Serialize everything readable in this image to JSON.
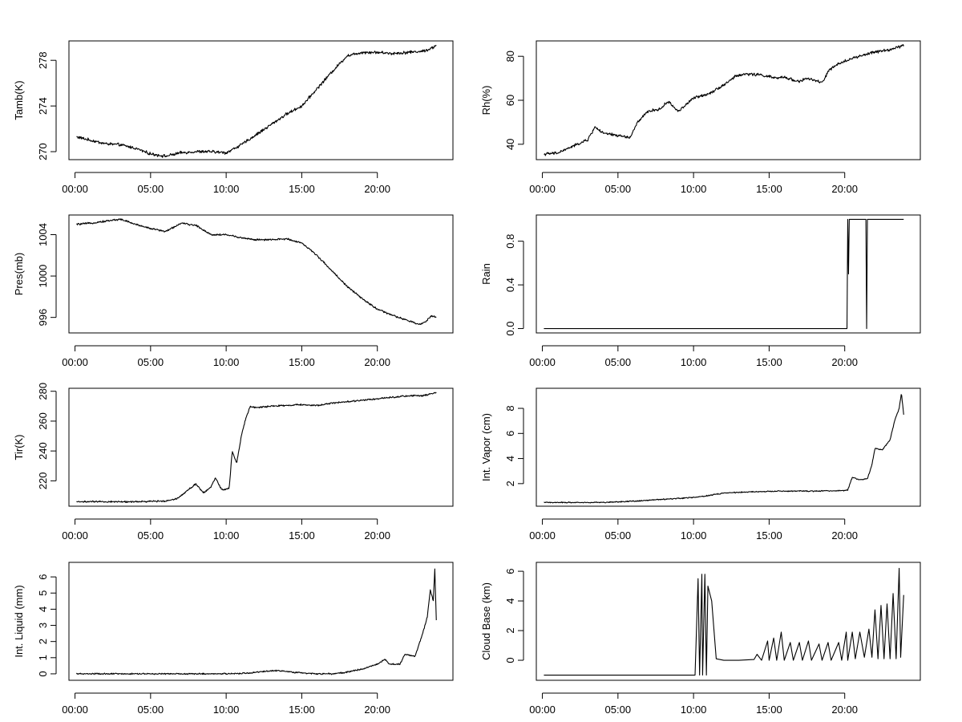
{
  "figure": {
    "layout": "4x2 grid of time-series panels",
    "colors": {
      "line": "#000000",
      "background": "#ffffff"
    }
  },
  "chart_data": [
    {
      "type": "line",
      "ylabel": "Tamb(K)",
      "x_ticks": [
        "00:00",
        "05:00",
        "10:00",
        "15:00",
        "20:00"
      ],
      "xlim": [
        -0.4,
        25.0
      ],
      "yticks": [
        270,
        274,
        278
      ],
      "ylim": [
        269.3,
        279.7
      ],
      "noise": 0.12,
      "points": [
        [
          0.1,
          271.3
        ],
        [
          1,
          271
        ],
        [
          2,
          270.7
        ],
        [
          3,
          270.6
        ],
        [
          4,
          270.3
        ],
        [
          5,
          269.8
        ],
        [
          6,
          269.6
        ],
        [
          7,
          269.9
        ],
        [
          8,
          270.0
        ],
        [
          9,
          270.0
        ],
        [
          10,
          269.9
        ],
        [
          11,
          270.6
        ],
        [
          12,
          271.5
        ],
        [
          13,
          272.4
        ],
        [
          14,
          273.3
        ],
        [
          15,
          274.0
        ],
        [
          16,
          275.5
        ],
        [
          17,
          277.0
        ],
        [
          18,
          278.4
        ],
        [
          19,
          278.7
        ],
        [
          20,
          278.7
        ],
        [
          21,
          278.6
        ],
        [
          22,
          278.7
        ],
        [
          23,
          278.8
        ],
        [
          23.5,
          279.0
        ],
        [
          23.9,
          279.3
        ]
      ]
    },
    {
      "type": "line",
      "ylabel": "Rh(%)",
      "x_ticks": [
        "00:00",
        "05:00",
        "10:00",
        "15:00",
        "20:00"
      ],
      "xlim": [
        -0.4,
        25.0
      ],
      "yticks": [
        40,
        60,
        80
      ],
      "ylim": [
        33,
        87
      ],
      "noise": 0.6,
      "points": [
        [
          0.1,
          35.5
        ],
        [
          1,
          36
        ],
        [
          2,
          39
        ],
        [
          3,
          42
        ],
        [
          3.5,
          48
        ],
        [
          4,
          45
        ],
        [
          5,
          44
        ],
        [
          5.8,
          43
        ],
        [
          6.3,
          50
        ],
        [
          7,
          55
        ],
        [
          7.8,
          56
        ],
        [
          8.3,
          59.5
        ],
        [
          9,
          55
        ],
        [
          10,
          61
        ],
        [
          11,
          63
        ],
        [
          12,
          67
        ],
        [
          12.8,
          71
        ],
        [
          13.5,
          72
        ],
        [
          14.5,
          71.5
        ],
        [
          15.5,
          70
        ],
        [
          16,
          70.5
        ],
        [
          17,
          68.5
        ],
        [
          17.5,
          70
        ],
        [
          18.5,
          68
        ],
        [
          19,
          74
        ],
        [
          20,
          78
        ],
        [
          21,
          80
        ],
        [
          22,
          82
        ],
        [
          23,
          83
        ],
        [
          23.9,
          85
        ]
      ]
    },
    {
      "type": "line",
      "ylabel": "Pres(mb)",
      "x_ticks": [
        "00:00",
        "05:00",
        "10:00",
        "15:00",
        "20:00"
      ],
      "xlim": [
        -0.4,
        25.0
      ],
      "yticks": [
        996,
        1000,
        1004
      ],
      "ylim": [
        994.5,
        1005.9
      ],
      "noise": 0.08,
      "points": [
        [
          0.1,
          1005.0
        ],
        [
          1,
          1005.1
        ],
        [
          2,
          1005.3
        ],
        [
          3,
          1005.5
        ],
        [
          4,
          1005.0
        ],
        [
          5,
          1004.6
        ],
        [
          6,
          1004.3
        ],
        [
          6.5,
          1004.7
        ],
        [
          7,
          1005.1
        ],
        [
          8,
          1004.9
        ],
        [
          9,
          1004.0
        ],
        [
          10,
          1004.0
        ],
        [
          11,
          1003.7
        ],
        [
          12,
          1003.5
        ],
        [
          13,
          1003.5
        ],
        [
          14,
          1003.6
        ],
        [
          15,
          1003.2
        ],
        [
          16,
          1002.0
        ],
        [
          17,
          1000.5
        ],
        [
          18,
          999.0
        ],
        [
          19,
          997.8
        ],
        [
          20,
          996.8
        ],
        [
          21,
          996.2
        ],
        [
          22,
          995.7
        ],
        [
          22.8,
          995.3
        ],
        [
          23.2,
          995.6
        ],
        [
          23.6,
          996.2
        ],
        [
          23.9,
          996.0
        ]
      ]
    },
    {
      "type": "line",
      "ylabel": "Rain",
      "x_ticks": [
        "00:00",
        "05:00",
        "10:00",
        "15:00",
        "20:00"
      ],
      "xlim": [
        -0.4,
        25.0
      ],
      "yticks": [
        0.0,
        0.4,
        0.8
      ],
      "ylim": [
        -0.04,
        1.04
      ],
      "noise": 0,
      "points": [
        [
          0.1,
          0
        ],
        [
          20.15,
          0
        ],
        [
          20.2,
          1
        ],
        [
          20.25,
          0.5
        ],
        [
          20.3,
          1
        ],
        [
          21.4,
          1
        ],
        [
          21.45,
          0
        ],
        [
          21.5,
          1
        ],
        [
          23.9,
          1
        ]
      ]
    },
    {
      "type": "line",
      "ylabel": "Tir(K)",
      "x_ticks": [
        "00:00",
        "05:00",
        "10:00",
        "15:00",
        "20:00"
      ],
      "xlim": [
        -0.4,
        25.0
      ],
      "yticks": [
        220,
        240,
        260,
        280
      ],
      "ylim": [
        203,
        282
      ],
      "noise": 0.5,
      "points": [
        [
          0.1,
          206
        ],
        [
          2,
          206
        ],
        [
          4,
          206
        ],
        [
          6,
          206.5
        ],
        [
          6.7,
          208
        ],
        [
          7,
          210
        ],
        [
          7.5,
          214
        ],
        [
          8,
          218
        ],
        [
          8.5,
          212
        ],
        [
          9,
          216
        ],
        [
          9.3,
          222
        ],
        [
          9.7,
          214
        ],
        [
          10.2,
          215
        ],
        [
          10.4,
          240
        ],
        [
          10.7,
          232
        ],
        [
          11,
          250
        ],
        [
          11.3,
          262
        ],
        [
          11.6,
          270
        ],
        [
          12,
          269
        ],
        [
          13,
          270
        ],
        [
          14,
          270.5
        ],
        [
          15,
          271
        ],
        [
          16,
          270.5
        ],
        [
          17,
          272
        ],
        [
          18,
          273
        ],
        [
          19,
          274
        ],
        [
          20,
          275
        ],
        [
          21,
          276
        ],
        [
          22,
          277
        ],
        [
          23,
          277
        ],
        [
          23.9,
          279
        ]
      ]
    },
    {
      "type": "line",
      "ylabel": "Int. Vapor (cm)",
      "x_ticks": [
        "00:00",
        "05:00",
        "10:00",
        "15:00",
        "20:00"
      ],
      "xlim": [
        -0.4,
        25.0
      ],
      "yticks": [
        2,
        4,
        6,
        8
      ],
      "ylim": [
        0.2,
        9.6
      ],
      "noise": 0.04,
      "points": [
        [
          0.1,
          0.5
        ],
        [
          2,
          0.5
        ],
        [
          4,
          0.5
        ],
        [
          6,
          0.6
        ],
        [
          8,
          0.75
        ],
        [
          10,
          0.9
        ],
        [
          11,
          1.05
        ],
        [
          12,
          1.25
        ],
        [
          13,
          1.3
        ],
        [
          14,
          1.35
        ],
        [
          16,
          1.4
        ],
        [
          18,
          1.4
        ],
        [
          20,
          1.45
        ],
        [
          20.2,
          1.5
        ],
        [
          20.5,
          2.5
        ],
        [
          21,
          2.3
        ],
        [
          21.5,
          2.4
        ],
        [
          21.8,
          3.5
        ],
        [
          22,
          4.8
        ],
        [
          22.5,
          4.7
        ],
        [
          23,
          5.5
        ],
        [
          23.3,
          7
        ],
        [
          23.6,
          8
        ],
        [
          23.75,
          9.2
        ],
        [
          23.9,
          7.5
        ]
      ]
    },
    {
      "type": "line",
      "ylabel": "Int. Liquid (mm)",
      "x_ticks": [
        "00:00",
        "05:00",
        "10:00",
        "15:00",
        "20:00"
      ],
      "xlim": [
        -0.4,
        25.0
      ],
      "yticks": [
        0,
        1,
        2,
        3,
        4,
        5,
        6
      ],
      "ylim": [
        -0.4,
        6.9
      ],
      "noise": 0.04,
      "points": [
        [
          0.1,
          0
        ],
        [
          5,
          0
        ],
        [
          10,
          0
        ],
        [
          11.5,
          0.05
        ],
        [
          12.5,
          0.15
        ],
        [
          13.5,
          0.2
        ],
        [
          14,
          0.15
        ],
        [
          15,
          0.05
        ],
        [
          16,
          0
        ],
        [
          17,
          0
        ],
        [
          18,
          0.1
        ],
        [
          19,
          0.3
        ],
        [
          20,
          0.6
        ],
        [
          20.5,
          0.9
        ],
        [
          20.8,
          0.6
        ],
        [
          21.5,
          0.6
        ],
        [
          21.8,
          1.2
        ],
        [
          22.5,
          1.1
        ],
        [
          23,
          2.5
        ],
        [
          23.3,
          3.5
        ],
        [
          23.5,
          5.2
        ],
        [
          23.7,
          4.5
        ],
        [
          23.8,
          6.5
        ],
        [
          23.9,
          3.3
        ]
      ]
    },
    {
      "type": "line",
      "ylabel": "Cloud Base (km)",
      "x_ticks": [
        "00:00",
        "05:00",
        "10:00",
        "15:00",
        "20:00"
      ],
      "xlim": [
        -0.4,
        25.0
      ],
      "yticks": [
        0,
        2,
        4,
        6
      ],
      "ylim": [
        -1.35,
        6.6
      ],
      "noise": 0,
      "points": [
        [
          0.1,
          -1
        ],
        [
          10.1,
          -1
        ],
        [
          10.3,
          5.5
        ],
        [
          10.4,
          -1
        ],
        [
          10.55,
          5.8
        ],
        [
          10.6,
          -1
        ],
        [
          10.75,
          5.8
        ],
        [
          10.85,
          -1
        ],
        [
          10.95,
          5
        ],
        [
          11.2,
          4
        ],
        [
          11.5,
          0.1
        ],
        [
          12,
          0
        ],
        [
          13,
          0
        ],
        [
          14,
          0.05
        ],
        [
          14.2,
          0.4
        ],
        [
          14.5,
          0
        ],
        [
          14.9,
          1.3
        ],
        [
          15,
          0
        ],
        [
          15.3,
          1.5
        ],
        [
          15.5,
          0
        ],
        [
          15.8,
          1.9
        ],
        [
          16,
          0
        ],
        [
          16.4,
          1.2
        ],
        [
          16.6,
          0
        ],
        [
          17,
          1.2
        ],
        [
          17.2,
          0
        ],
        [
          17.6,
          1.3
        ],
        [
          17.8,
          0
        ],
        [
          18.3,
          1.1
        ],
        [
          18.5,
          0
        ],
        [
          18.9,
          1.2
        ],
        [
          19.1,
          0
        ],
        [
          19.6,
          1.2
        ],
        [
          19.8,
          0
        ],
        [
          20.1,
          1.9
        ],
        [
          20.2,
          0
        ],
        [
          20.5,
          1.9
        ],
        [
          20.7,
          0.1
        ],
        [
          21,
          1.9
        ],
        [
          21.3,
          0.2
        ],
        [
          21.6,
          2.1
        ],
        [
          21.8,
          0.2
        ],
        [
          22,
          3.4
        ],
        [
          22.2,
          0.1
        ],
        [
          22.4,
          3.7
        ],
        [
          22.6,
          0.1
        ],
        [
          22.8,
          3.8
        ],
        [
          23,
          0.1
        ],
        [
          23.2,
          4.5
        ],
        [
          23.4,
          0.1
        ],
        [
          23.6,
          6.2
        ],
        [
          23.7,
          0.2
        ],
        [
          23.9,
          4.4
        ]
      ]
    }
  ]
}
